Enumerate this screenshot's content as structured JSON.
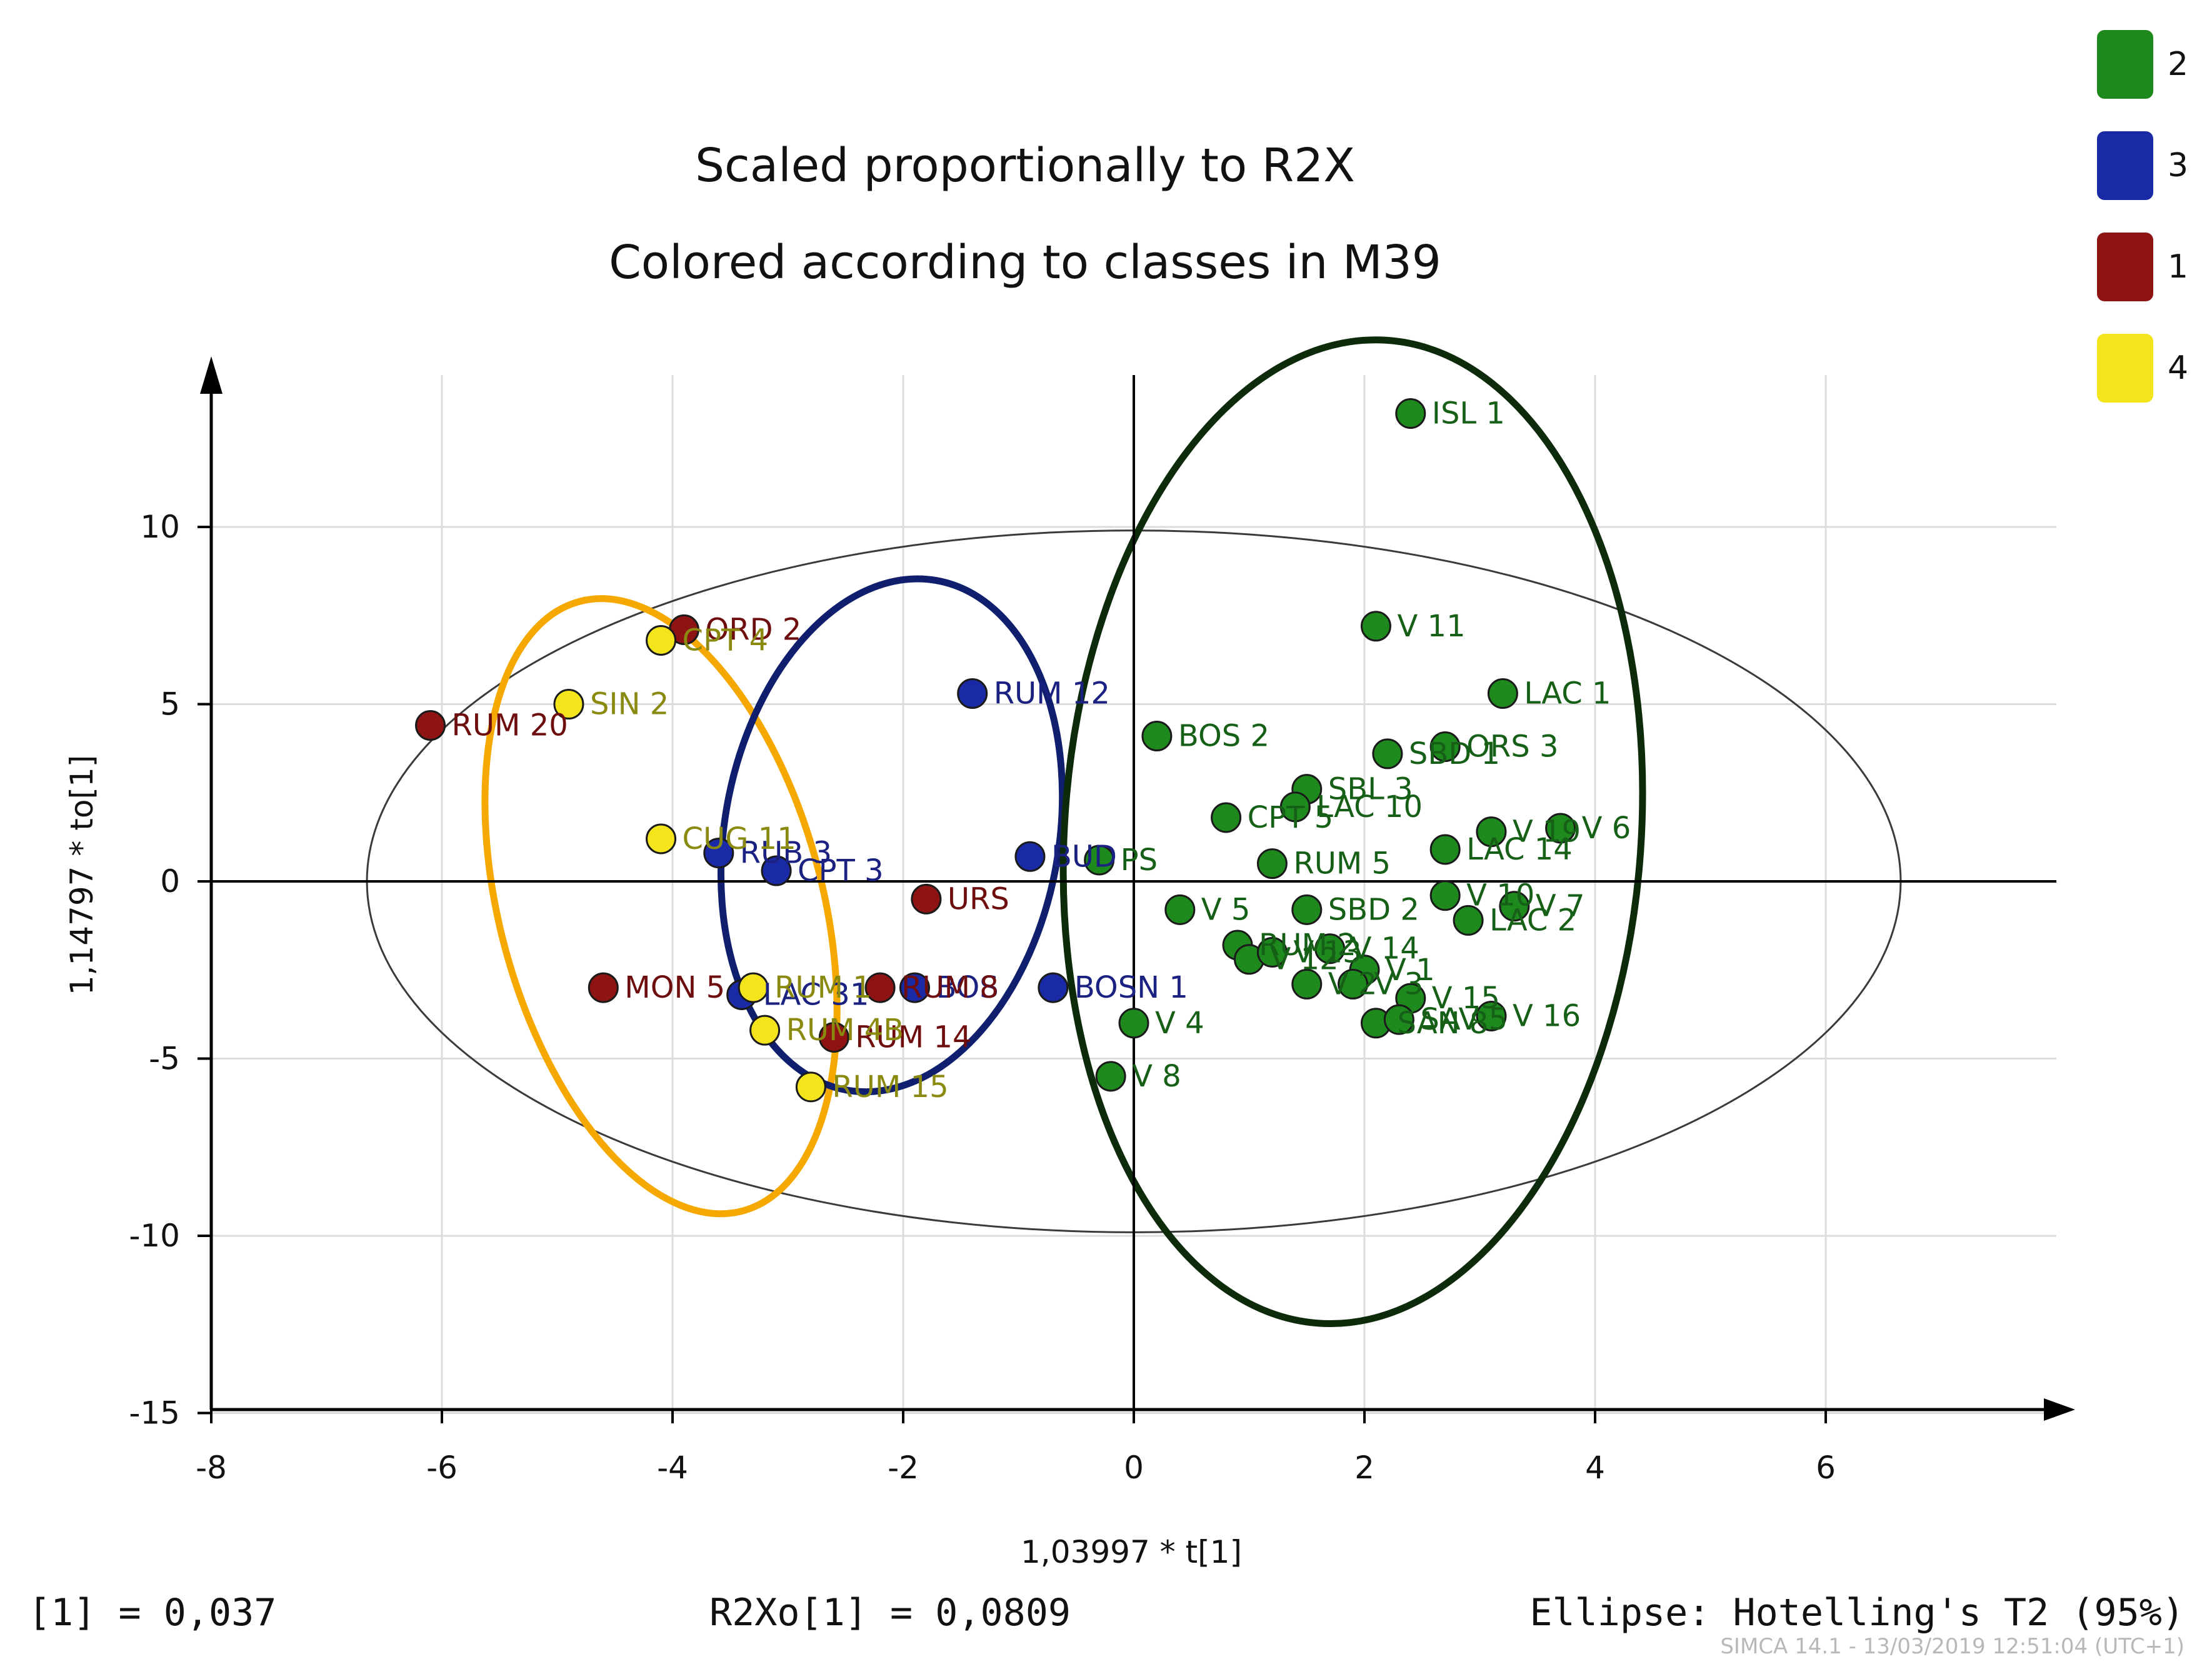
{
  "chart_data": {
    "type": "scatter",
    "title": "Scaled proportionally to R2X",
    "subtitle": "Colored according to classes in M39",
    "xlabel": "1,03997 * t[1]",
    "ylabel": "1,14797 * to[1]",
    "xlim": [
      -8,
      8
    ],
    "ylim": [
      -15,
      15
    ],
    "x_ticks": [
      -8,
      -6,
      -4,
      -2,
      0,
      2,
      4,
      6
    ],
    "y_ticks": [
      10,
      5,
      0,
      -5,
      -10,
      -15
    ],
    "y_tick_labels": [
      "10",
      "5",
      "0",
      "-5",
      "-10",
      "-15"
    ],
    "grid": true,
    "legend_position": "top-right",
    "classes": [
      {
        "id": "2",
        "color": "#1e8a1e"
      },
      {
        "id": "3",
        "color": "#1a2aa6"
      },
      {
        "id": "1",
        "color": "#8e1414"
      },
      {
        "id": "4",
        "color": "#f4e41c"
      }
    ],
    "points": [
      {
        "label": "ISL 1",
        "cls": "2",
        "x": 2.4,
        "y": 13.2
      },
      {
        "label": "V 11",
        "cls": "2",
        "x": 2.1,
        "y": 7.2
      },
      {
        "label": "ORS 3",
        "cls": "2",
        "x": 2.7,
        "y": 3.8
      },
      {
        "label": "LAC 1",
        "cls": "2",
        "x": 3.2,
        "y": 5.3
      },
      {
        "label": "BOS 2",
        "cls": "2",
        "x": 0.2,
        "y": 4.1
      },
      {
        "label": "SBD 1",
        "cls": "2",
        "x": 2.2,
        "y": 3.6
      },
      {
        "label": "SBL 3",
        "cls": "2",
        "x": 1.5,
        "y": 2.6
      },
      {
        "label": "LAC 10",
        "cls": "2",
        "x": 1.4,
        "y": 2.1
      },
      {
        "label": "V 19",
        "cls": "2",
        "x": 3.1,
        "y": 1.4
      },
      {
        "label": "CPT 5",
        "cls": "2",
        "x": 0.8,
        "y": 1.8
      },
      {
        "label": "V 6",
        "cls": "2",
        "x": 3.7,
        "y": 1.5
      },
      {
        "label": "PS",
        "cls": "2",
        "x": -0.3,
        "y": 0.6
      },
      {
        "label": "RUM 5",
        "cls": "2",
        "x": 1.2,
        "y": 0.5
      },
      {
        "label": "LAC 14",
        "cls": "2",
        "x": 2.7,
        "y": 0.9
      },
      {
        "label": "V 5",
        "cls": "2",
        "x": 0.4,
        "y": -0.8
      },
      {
        "label": "SBD 2",
        "cls": "2",
        "x": 1.5,
        "y": -0.8
      },
      {
        "label": "V 10",
        "cls": "2",
        "x": 2.7,
        "y": -0.4
      },
      {
        "label": "V 7",
        "cls": "2",
        "x": 3.3,
        "y": -0.7
      },
      {
        "label": "LAC 2",
        "cls": "2",
        "x": 2.9,
        "y": -1.1
      },
      {
        "label": "RUM 2",
        "cls": "2",
        "x": 0.9,
        "y": -1.8
      },
      {
        "label": "V 12",
        "cls": "2",
        "x": 1.0,
        "y": -2.2
      },
      {
        "label": "V 13",
        "cls": "2",
        "x": 1.2,
        "y": -2.0
      },
      {
        "label": "V 14",
        "cls": "2",
        "x": 1.7,
        "y": -1.9
      },
      {
        "label": "V 1",
        "cls": "2",
        "x": 2.0,
        "y": -2.5
      },
      {
        "label": "V 2",
        "cls": "2",
        "x": 1.5,
        "y": -2.9
      },
      {
        "label": "V 3",
        "cls": "2",
        "x": 1.9,
        "y": -2.9
      },
      {
        "label": "V 15",
        "cls": "2",
        "x": 2.4,
        "y": -3.3
      },
      {
        "label": "SAN 8",
        "cls": "2",
        "x": 2.1,
        "y": -4.0
      },
      {
        "label": "SAV 5",
        "cls": "2",
        "x": 2.3,
        "y": -3.9
      },
      {
        "label": "V 16",
        "cls": "2",
        "x": 3.1,
        "y": -3.8
      },
      {
        "label": "V 4",
        "cls": "2",
        "x": 0.0,
        "y": -4.0
      },
      {
        "label": "V 8",
        "cls": "2",
        "x": -0.2,
        "y": -5.5
      },
      {
        "label": "RUM 12",
        "cls": "3",
        "x": -1.4,
        "y": 5.3
      },
      {
        "label": "BUD",
        "cls": "3",
        "x": -0.9,
        "y": 0.7
      },
      {
        "label": "RUB 3",
        "cls": "3",
        "x": -3.6,
        "y": 0.8
      },
      {
        "label": "CPT 3",
        "cls": "3",
        "x": -3.1,
        "y": 0.3
      },
      {
        "label": "BOSN 1",
        "cls": "3",
        "x": -0.7,
        "y": -3.0
      },
      {
        "label": "BOS",
        "cls": "3",
        "x": -1.9,
        "y": -3.0
      },
      {
        "label": "LAC 31",
        "cls": "3",
        "x": -3.4,
        "y": -3.2
      },
      {
        "label": "ORD 2",
        "cls": "1",
        "x": -3.9,
        "y": 7.1
      },
      {
        "label": "RUM 20",
        "cls": "1",
        "x": -6.1,
        "y": 4.4
      },
      {
        "label": "URS",
        "cls": "1",
        "x": -1.8,
        "y": -0.5
      },
      {
        "label": "RUM 8",
        "cls": "1",
        "x": -2.2,
        "y": -3.0
      },
      {
        "label": "MON 5",
        "cls": "1",
        "x": -4.6,
        "y": -3.0
      },
      {
        "label": "RUM 14",
        "cls": "1",
        "x": -2.6,
        "y": -4.4
      },
      {
        "label": "CPT 4",
        "cls": "4",
        "x": -4.1,
        "y": 6.8
      },
      {
        "label": "SIN 2",
        "cls": "4",
        "x": -4.9,
        "y": 5.0
      },
      {
        "label": "CUG 11",
        "cls": "4",
        "x": -4.1,
        "y": 1.2
      },
      {
        "label": "RUM 1",
        "cls": "4",
        "x": -3.3,
        "y": -3.0
      },
      {
        "label": "RUM 4B",
        "cls": "4",
        "x": -3.2,
        "y": -4.2
      },
      {
        "label": "RUM 15",
        "cls": "4",
        "x": -2.8,
        "y": -5.8
      }
    ],
    "group_ellipses": [
      {
        "cls": "4",
        "color": "#f5a800"
      },
      {
        "cls": "3",
        "color": "#0f1f6e"
      },
      {
        "cls": "2",
        "color": "#0d2a0a"
      }
    ]
  },
  "footer": {
    "left": "[1] = 0,037",
    "middle": "R2Xo[1] = 0,0809",
    "right": "Ellipse: Hotelling's T2 (95%)",
    "stamp": "SIMCA 14.1 - 13/03/2019 12:51:04 (UTC+1)"
  }
}
